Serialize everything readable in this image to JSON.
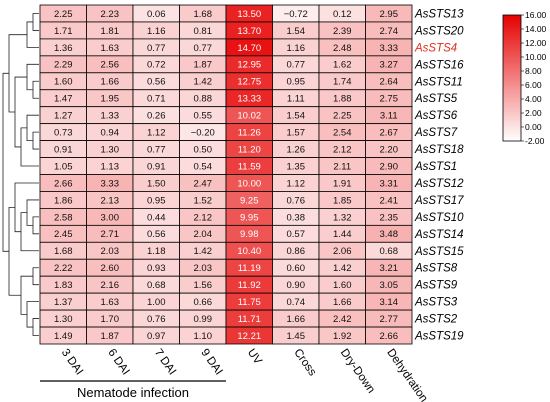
{
  "chart_data": {
    "type": "heatmap",
    "title": "",
    "columns": [
      "3 DAI",
      "6 DAI",
      "7 DAI",
      "9 DAI",
      "UV",
      "Cross",
      "Dry-Down",
      "Dehydration"
    ],
    "column_group": {
      "label": "Nematode infection",
      "columns": [
        "3 DAI",
        "6 DAI",
        "7 DAI",
        "9 DAI"
      ]
    },
    "rows": [
      "AsSTS13",
      "AsSTS20",
      "AsSTS4",
      "AsSTS16",
      "AsSTS11",
      "AsSTS5",
      "AsSTS6",
      "AsSTS7",
      "AsSTS18",
      "AsSTS1",
      "AsSTS12",
      "AsSTS17",
      "AsSTS10",
      "AsSTS14",
      "AsSTS15",
      "AsSTS8",
      "AsSTS9",
      "AsSTS3",
      "AsSTS2",
      "AsSTS19"
    ],
    "highlighted_row": "AsSTS4",
    "highlight_color": "#e0301e",
    "values": [
      [
        2.25,
        2.23,
        0.06,
        1.68,
        13.5,
        -0.72,
        0.12,
        2.95
      ],
      [
        1.71,
        1.81,
        1.16,
        0.81,
        13.7,
        1.54,
        2.39,
        2.74
      ],
      [
        1.36,
        1.63,
        0.77,
        0.77,
        14.7,
        1.16,
        2.48,
        3.33
      ],
      [
        2.29,
        2.56,
        0.72,
        1.87,
        12.95,
        0.77,
        1.62,
        3.27
      ],
      [
        1.6,
        1.66,
        0.56,
        1.42,
        12.75,
        0.95,
        1.74,
        2.64
      ],
      [
        1.47,
        1.95,
        0.71,
        0.88,
        13.33,
        1.11,
        1.88,
        2.75
      ],
      [
        1.27,
        1.33,
        0.26,
        0.55,
        10.02,
        1.54,
        2.25,
        3.11
      ],
      [
        0.73,
        0.94,
        1.12,
        -0.2,
        11.26,
        1.57,
        2.54,
        2.67
      ],
      [
        0.91,
        1.3,
        0.77,
        0.5,
        11.2,
        1.26,
        2.12,
        2.2
      ],
      [
        1.05,
        1.13,
        0.91,
        0.54,
        11.59,
        1.35,
        2.11,
        2.9
      ],
      [
        2.66,
        3.33,
        1.5,
        2.47,
        10.0,
        1.12,
        1.91,
        3.31
      ],
      [
        1.86,
        2.13,
        0.95,
        1.52,
        9.25,
        0.76,
        1.85,
        2.41
      ],
      [
        2.58,
        3.0,
        0.44,
        2.12,
        9.95,
        0.38,
        1.32,
        2.35
      ],
      [
        2.45,
        2.71,
        0.56,
        2.04,
        9.98,
        0.57,
        1.44,
        3.48
      ],
      [
        1.68,
        2.03,
        1.18,
        1.42,
        10.4,
        0.86,
        2.06,
        0.68
      ],
      [
        2.22,
        2.6,
        0.93,
        2.03,
        11.19,
        0.6,
        1.42,
        3.21
      ],
      [
        1.83,
        2.16,
        0.68,
        1.56,
        11.92,
        0.9,
        1.6,
        3.05
      ],
      [
        1.37,
        1.63,
        1.0,
        0.66,
        11.75,
        0.74,
        1.66,
        3.14
      ],
      [
        1.3,
        1.7,
        0.76,
        0.99,
        11.71,
        1.66,
        2.42,
        2.77
      ],
      [
        1.49,
        1.87,
        0.97,
        1.1,
        12.21,
        1.45,
        1.92,
        2.66
      ]
    ],
    "colorbar": {
      "min": -2.0,
      "max": 16.0,
      "ticks": [
        "16.00",
        "14.00",
        "12.00",
        "10.00",
        "8.00",
        "6.00",
        "4.00",
        "2.00",
        "0.00",
        "-2.00"
      ],
      "low_color": "#ffffff",
      "high_color": "#e60000"
    },
    "dendrogram": "left",
    "grid": true
  }
}
